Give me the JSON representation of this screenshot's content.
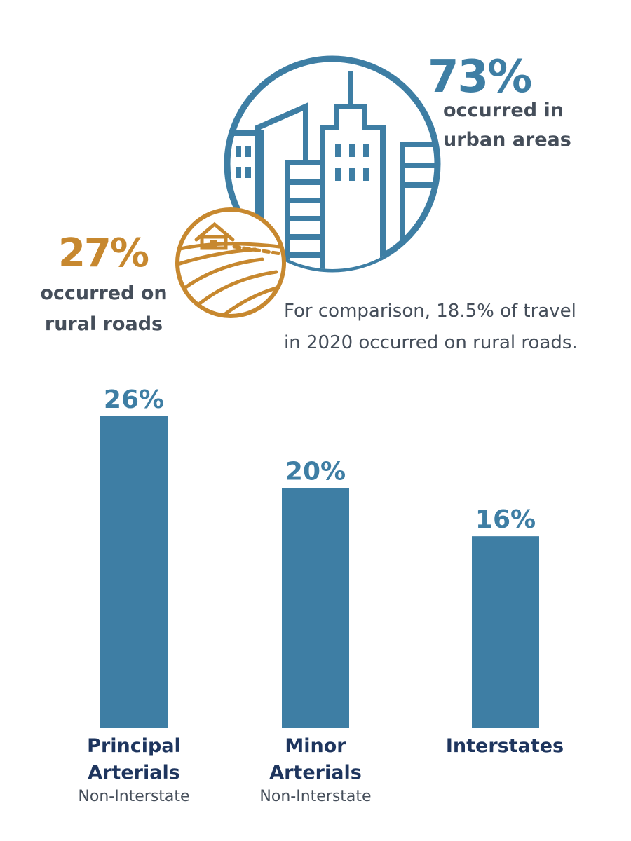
{
  "urban": {
    "percent": "73%",
    "line1": "occurred in",
    "line2": "urban areas"
  },
  "rural": {
    "percent": "27%",
    "line1": "occurred on",
    "line2": "rural roads"
  },
  "note": {
    "line1": "For comparison, 18.5% of travel",
    "line2": "in 2020 occurred on rural roads."
  },
  "colors": {
    "urban": "#3e7ea4",
    "rural": "#c7882f",
    "bar": "#3e7ea4",
    "label": "#1e355e",
    "text": "#454e5a"
  },
  "icons": [
    "city-skyline-icon",
    "rural-farm-icon"
  ],
  "chart_data": {
    "type": "bar",
    "categories": [
      "Principal Arterials",
      "Minor Arterials",
      "Interstates"
    ],
    "subcategories": [
      "Non-Interstate",
      "Non-Interstate",
      ""
    ],
    "values": [
      26,
      20,
      16
    ],
    "value_labels": [
      "26%",
      "20%",
      "16%"
    ],
    "ylim": [
      0,
      26
    ],
    "grid": false,
    "title": "",
    "xlabel": "",
    "ylabel": ""
  }
}
